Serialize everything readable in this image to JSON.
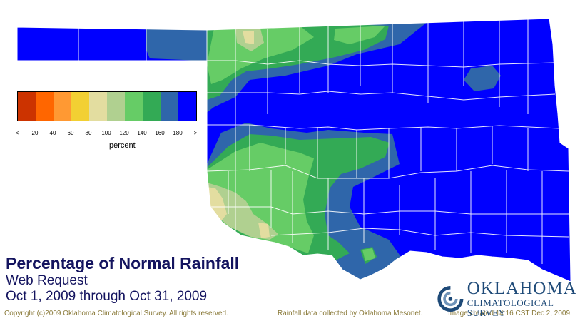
{
  "title": "Percentage of Normal Rainfall",
  "subtitle": "Web Request",
  "date_range": "Oct 1, 2009 through Oct 31, 2009",
  "legend": {
    "unit": "percent",
    "tick_labels": [
      "<",
      "20",
      "40",
      "60",
      "80",
      "100",
      "120",
      "140",
      "160",
      "180",
      ">"
    ],
    "colors": [
      "#cc3300",
      "#ff6600",
      "#ff9933",
      "#f2d033",
      "#e3dda0",
      "#b0d090",
      "#66cc66",
      "#33aa55",
      "#2f66aa",
      "#0000ff"
    ]
  },
  "map": {
    "region": "Oklahoma",
    "fill_classes": {
      "above_180": "#0000ff",
      "160_180": "#2f66aa",
      "140_160": "#33aa55",
      "120_140": "#66cc66",
      "100_120": "#b0d090",
      "80_100": "#e3dda0"
    },
    "county_line_color": "#ffffff"
  },
  "footer": {
    "copyright": "Copyright (c)2009 Oklahoma Climatological Survey. All rights reserved.",
    "data_source": "Rainfall data collected by Oklahoma Mesonet.",
    "created": "Image created 14:16 CST Dec 2, 2009."
  },
  "logo": {
    "name": "OKLAHOMA",
    "sub": "CLIMATOLOGICAL SURVEY",
    "icon": "ocs-swirl-icon"
  }
}
